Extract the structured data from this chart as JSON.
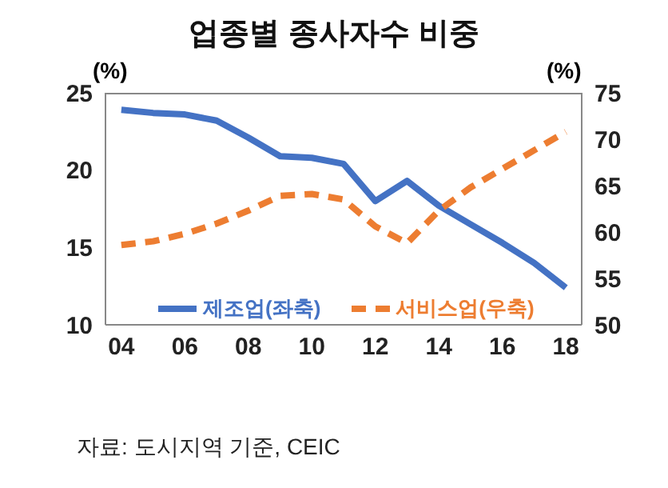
{
  "chart_data": {
    "type": "line",
    "title": "업종별 종사자수 비중",
    "ylabel": "(%)",
    "y2label": "(%)",
    "x": [
      4,
      5,
      6,
      7,
      8,
      9,
      10,
      11,
      12,
      13,
      14,
      15,
      16,
      17,
      18
    ],
    "xlim": [
      3.5,
      18.5
    ],
    "xticks": [
      {
        "value": 4,
        "label": "04"
      },
      {
        "value": 6,
        "label": "06"
      },
      {
        "value": 8,
        "label": "08"
      },
      {
        "value": 10,
        "label": "10"
      },
      {
        "value": 12,
        "label": "12"
      },
      {
        "value": 14,
        "label": "14"
      },
      {
        "value": 16,
        "label": "16"
      },
      {
        "value": 18,
        "label": "18"
      }
    ],
    "ylim": [
      10,
      25
    ],
    "yticks": [
      10,
      15,
      20,
      25
    ],
    "y2lim": [
      50,
      75
    ],
    "y2ticks": [
      50,
      55,
      60,
      65,
      70,
      75
    ],
    "series": [
      {
        "name": "제조업(좌축)",
        "color": "#4472c4",
        "line_style": "solid",
        "values": [
          23.9,
          23.7,
          23.6,
          23.2,
          22.1,
          20.9,
          20.8,
          20.4,
          18.0,
          19.3,
          17.7,
          16.5,
          15.3,
          14.0,
          12.4
        ]
      },
      {
        "name": "서비스업(우축)",
        "color": "#ed7d31",
        "axis": "y2",
        "line_style": "dashed",
        "values": [
          58.6,
          59.0,
          59.8,
          60.9,
          62.3,
          63.9,
          64.1,
          63.5,
          60.6,
          58.8,
          62.3,
          64.8,
          66.8,
          68.8,
          70.8
        ]
      }
    ],
    "legend": "bottom",
    "grid": false,
    "marker": "none",
    "annotations": [
      "자료: 도시지역 기준, CEIC"
    ]
  }
}
